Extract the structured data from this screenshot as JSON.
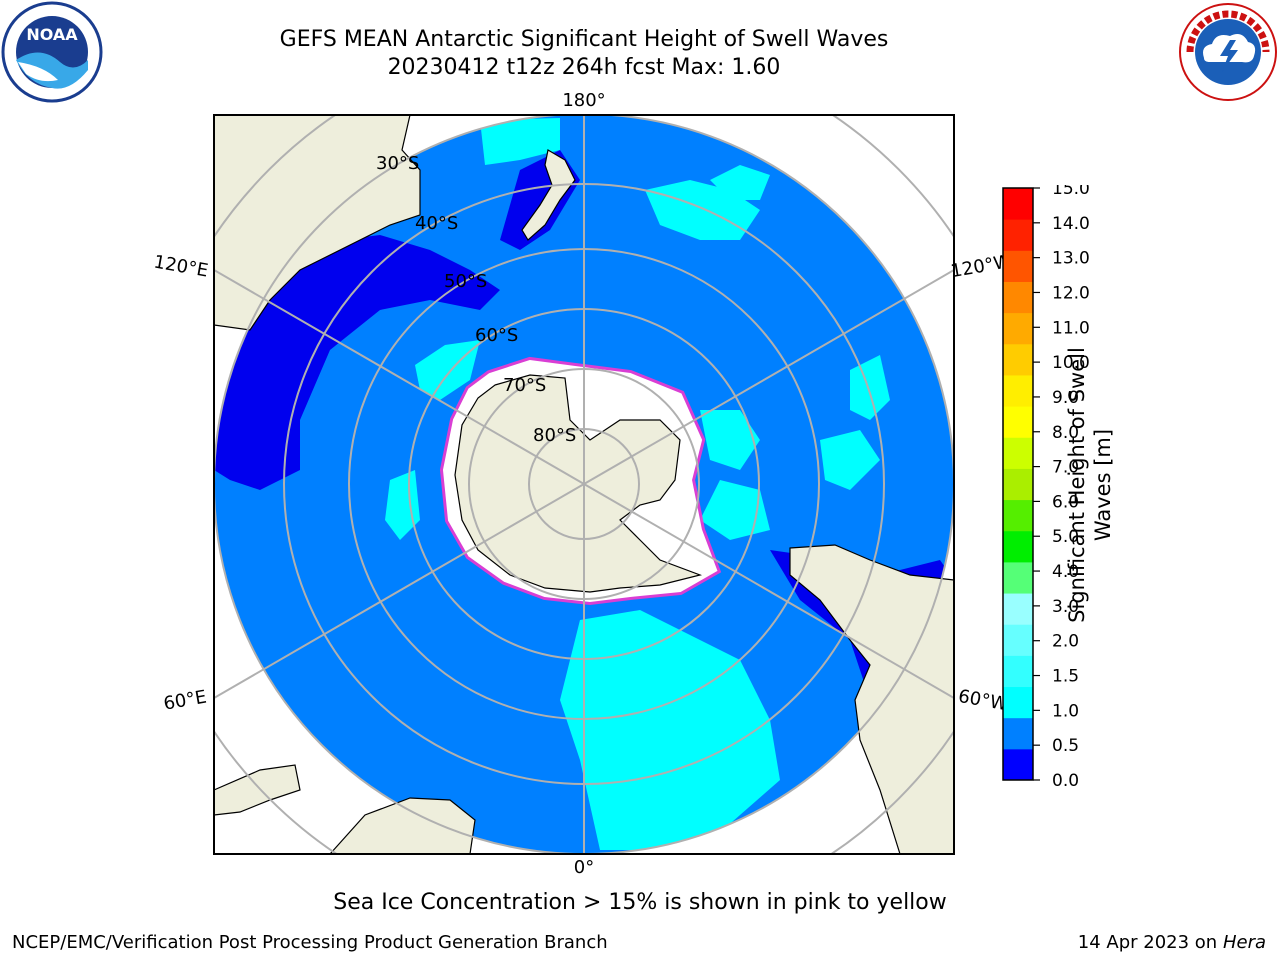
{
  "header": {
    "title_line1": "GEFS MEAN Antarctic Significant Height of Swell Waves",
    "title_line2": "20230412 t12z 264h fcst   Max: 1.60"
  },
  "logos": {
    "left": "NOAA",
    "right": "NATIONAL WEATHER SERVICE"
  },
  "map": {
    "projection": "south-polar-stereographic",
    "longitude_labels": [
      "180°",
      "120°E",
      "120°W",
      "60°E",
      "60°W",
      "0°"
    ],
    "latitude_labels": [
      "30°S",
      "40°S",
      "50°S",
      "60°S",
      "70°S",
      "80°S"
    ],
    "colors": {
      "ocean_base": "#0080ff",
      "calm": "#0000ee",
      "swell_1_5": "#00ffff",
      "land": "#eeeedc",
      "ice_shelf": "#ffffff",
      "sea_ice_edge": "#ff33cc"
    }
  },
  "colorbar": {
    "label": "Significant Height of Swell Waves [m]",
    "ticks": [
      "0.0",
      "0.5",
      "1.0",
      "1.5",
      "2.0",
      "3.0",
      "4.0",
      "5.0",
      "6.0",
      "7.0",
      "8.0",
      "9.0",
      "10.0",
      "11.0",
      "12.0",
      "13.0",
      "14.0",
      "15.0"
    ],
    "colors": [
      "#0000ff",
      "#0080ff",
      "#00ffff",
      "#33ffff",
      "#66ffff",
      "#99ffff",
      "#55ff77",
      "#00ee00",
      "#55ee00",
      "#aaee00",
      "#ccff00",
      "#ffff00",
      "#ffee00",
      "#ffcc00",
      "#ffaa00",
      "#ff8800",
      "#ff5500",
      "#ff2200",
      "#ff0000"
    ]
  },
  "footer": {
    "note": "Sea Ice Concentration > 15% is shown in pink to yellow",
    "credit": "NCEP/EMC/Verification Post Processing Product Generation Branch",
    "date_prefix": "14 Apr 2023 on ",
    "machine": "Hera"
  }
}
